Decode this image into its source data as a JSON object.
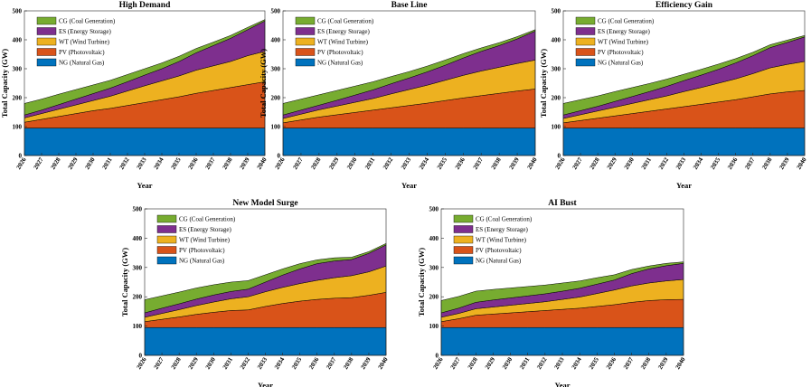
{
  "colors": {
    "NG": "#0072BD",
    "PV": "#D95319",
    "WT": "#EDB120",
    "ES": "#7E2F8E",
    "CG": "#77AC30"
  },
  "chart_data": [
    {
      "type": "area",
      "stacked": true,
      "title": "High Demand",
      "xlabel": "Year",
      "ylabel": "Total Capacity (GW)",
      "ylim": [
        0,
        500
      ],
      "yticks": [
        "0",
        "100",
        "200",
        "300",
        "400",
        "500"
      ],
      "x": [
        "2026",
        "2027",
        "2028",
        "2029",
        "2030",
        "2031",
        "2032",
        "2033",
        "2034",
        "2035",
        "2036",
        "2037",
        "2038",
        "2039",
        "2040"
      ],
      "legend": {
        "position": "top-left",
        "order": [
          "CG",
          "ES",
          "WT",
          "PV",
          "NG"
        ]
      },
      "series": [
        {
          "key": "NG",
          "name": "NG (Natural Gas)",
          "values": [
            95,
            95,
            95,
            95,
            95,
            95,
            95,
            95,
            95,
            95,
            95,
            95,
            95,
            95,
            95
          ]
        },
        {
          "key": "PV",
          "name": "PV (Photovoltaic)",
          "values": [
            20,
            30,
            40,
            50,
            60,
            68,
            78,
            88,
            98,
            108,
            120,
            130,
            140,
            150,
            160
          ]
        },
        {
          "key": "WT",
          "name": "WT (Wind Turbine)",
          "values": [
            15,
            20,
            25,
            30,
            35,
            42,
            50,
            58,
            65,
            72,
            80,
            85,
            90,
            100,
            105
          ]
        },
        {
          "key": "ES",
          "name": "ES (Energy Storage)",
          "values": [
            10,
            12,
            16,
            20,
            24,
            28,
            32,
            37,
            42,
            50,
            60,
            70,
            80,
            90,
            105
          ]
        },
        {
          "key": "CG",
          "name": "CG (Coal Generation)",
          "values": [
            40,
            38,
            36,
            33,
            30,
            27,
            25,
            22,
            20,
            18,
            15,
            12,
            10,
            8,
            5
          ]
        }
      ]
    },
    {
      "type": "area",
      "stacked": true,
      "title": "Base Line",
      "xlabel": "Year",
      "ylabel": "Total Capacity (GW)",
      "ylim": [
        0,
        500
      ],
      "yticks": [
        "0",
        "100",
        "200",
        "300",
        "400",
        "500"
      ],
      "x": [
        "2026",
        "2027",
        "2028",
        "2029",
        "2030",
        "2031",
        "2032",
        "2033",
        "2034",
        "2035",
        "2036",
        "2037",
        "2038",
        "2039",
        "2040"
      ],
      "legend": {
        "position": "top-left",
        "order": [
          "CG",
          "ES",
          "WT",
          "PV",
          "NG"
        ]
      },
      "series": [
        {
          "key": "NG",
          "name": "NG (Natural Gas)",
          "values": [
            95,
            95,
            95,
            95,
            95,
            95,
            95,
            95,
            95,
            95,
            95,
            95,
            95,
            95,
            95
          ]
        },
        {
          "key": "PV",
          "name": "PV (Photovoltaic)",
          "values": [
            18,
            28,
            38,
            46,
            54,
            62,
            70,
            78,
            86,
            95,
            104,
            112,
            120,
            128,
            135
          ]
        },
        {
          "key": "WT",
          "name": "WT (Wind Turbine)",
          "values": [
            15,
            20,
            25,
            30,
            35,
            40,
            48,
            55,
            62,
            70,
            78,
            85,
            90,
            95,
            100
          ]
        },
        {
          "key": "ES",
          "name": "ES (Energy Storage)",
          "values": [
            12,
            14,
            16,
            20,
            25,
            30,
            35,
            40,
            46,
            52,
            60,
            68,
            75,
            85,
            100
          ]
        },
        {
          "key": "CG",
          "name": "CG (Coal Generation)",
          "values": [
            40,
            38,
            36,
            34,
            31,
            28,
            25,
            22,
            20,
            18,
            15,
            12,
            10,
            8,
            5
          ]
        }
      ]
    },
    {
      "type": "area",
      "stacked": true,
      "title": "Efficiency Gain",
      "xlabel": "Year",
      "ylabel": "Total Capacity (GW)",
      "ylim": [
        0,
        500
      ],
      "yticks": [
        "0",
        "100",
        "200",
        "300",
        "400",
        "500"
      ],
      "x": [
        "2026",
        "2027",
        "2028",
        "2029",
        "2030",
        "2031",
        "2032",
        "2033",
        "2034",
        "2035",
        "2036",
        "2037",
        "2038",
        "2039",
        "2040"
      ],
      "legend": {
        "position": "top-left",
        "order": [
          "CG",
          "ES",
          "WT",
          "PV",
          "NG"
        ]
      },
      "series": [
        {
          "key": "NG",
          "name": "NG (Natural Gas)",
          "values": [
            95,
            95,
            95,
            95,
            95,
            95,
            95,
            95,
            95,
            95,
            95,
            95,
            95,
            95,
            95
          ]
        },
        {
          "key": "PV",
          "name": "PV (Photovoltaic)",
          "values": [
            18,
            26,
            34,
            42,
            50,
            58,
            66,
            74,
            82,
            90,
            98,
            108,
            118,
            125,
            130
          ]
        },
        {
          "key": "WT",
          "name": "WT (Wind Turbine)",
          "values": [
            15,
            20,
            25,
            30,
            35,
            40,
            45,
            52,
            58,
            65,
            72,
            80,
            90,
            95,
            100
          ]
        },
        {
          "key": "ES",
          "name": "ES (Energy Storage)",
          "values": [
            12,
            14,
            16,
            20,
            24,
            28,
            33,
            38,
            43,
            48,
            55,
            62,
            70,
            76,
            85
          ]
        },
        {
          "key": "CG",
          "name": "CG (Coal Generation)",
          "values": [
            40,
            38,
            36,
            34,
            31,
            28,
            25,
            22,
            20,
            18,
            15,
            12,
            10,
            8,
            5
          ]
        }
      ]
    },
    {
      "type": "area",
      "stacked": true,
      "title": "New Model Surge",
      "xlabel": "Year",
      "ylabel": "Total Capacity (GW)",
      "ylim": [
        0,
        500
      ],
      "yticks": [
        "0",
        "100",
        "200",
        "300",
        "400",
        "500"
      ],
      "x": [
        "2026",
        "2027",
        "2028",
        "2029",
        "2030",
        "2031",
        "2032",
        "2033",
        "2034",
        "2035",
        "2036",
        "2037",
        "2038",
        "2039",
        "2040"
      ],
      "legend": {
        "position": "top-left",
        "order": [
          "CG",
          "ES",
          "WT",
          "PV",
          "NG"
        ]
      },
      "series": [
        {
          "key": "NG",
          "name": "NG (Natural Gas)",
          "values": [
            95,
            95,
            95,
            95,
            95,
            95,
            95,
            95,
            95,
            95,
            95,
            95,
            95,
            95,
            95
          ]
        },
        {
          "key": "PV",
          "name": "PV (Photovoltaic)",
          "values": [
            20,
            28,
            36,
            45,
            52,
            58,
            60,
            72,
            82,
            90,
            96,
            100,
            102,
            110,
            120
          ]
        },
        {
          "key": "WT",
          "name": "WT (Wind Turbine)",
          "values": [
            15,
            20,
            25,
            30,
            35,
            40,
            45,
            50,
            55,
            60,
            65,
            70,
            75,
            80,
            90
          ]
        },
        {
          "key": "ES",
          "name": "ES (Energy Storage)",
          "values": [
            15,
            18,
            20,
            22,
            24,
            25,
            26,
            33,
            42,
            50,
            57,
            57,
            55,
            63,
            72
          ]
        },
        {
          "key": "CG",
          "name": "CG (Coal Generation)",
          "values": [
            45,
            42,
            40,
            38,
            35,
            32,
            29,
            25,
            21,
            18,
            13,
            11,
            8,
            6,
            5
          ]
        }
      ]
    },
    {
      "type": "area",
      "stacked": true,
      "title": "AI Bust",
      "xlabel": "Year",
      "ylabel": "Total Capacity (GW)",
      "ylim": [
        0,
        500
      ],
      "yticks": [
        "0",
        "100",
        "200",
        "300",
        "400",
        "500"
      ],
      "x": [
        "2026",
        "2027",
        "2028",
        "2029",
        "2030",
        "2031",
        "2032",
        "2033",
        "2034",
        "2035",
        "2036",
        "2037",
        "2038",
        "2039",
        "2040"
      ],
      "legend": {
        "position": "top-left",
        "order": [
          "CG",
          "ES",
          "WT",
          "PV",
          "NG"
        ]
      },
      "series": [
        {
          "key": "NG",
          "name": "NG (Natural Gas)",
          "values": [
            95,
            95,
            95,
            95,
            95,
            95,
            95,
            95,
            95,
            95,
            95,
            95,
            95,
            95,
            95
          ]
        },
        {
          "key": "PV",
          "name": "PV (Photovoltaic)",
          "values": [
            20,
            30,
            42,
            46,
            50,
            54,
            58,
            62,
            66,
            72,
            78,
            86,
            92,
            95,
            96
          ]
        },
        {
          "key": "WT",
          "name": "WT (Wind Turbine)",
          "values": [
            15,
            18,
            22,
            24,
            26,
            28,
            30,
            34,
            38,
            44,
            50,
            56,
            60,
            64,
            68
          ]
        },
        {
          "key": "ES",
          "name": "ES (Energy Storage)",
          "values": [
            15,
            18,
            22,
            24,
            25,
            26,
            27,
            28,
            30,
            32,
            34,
            42,
            48,
            52,
            55
          ]
        },
        {
          "key": "CG",
          "name": "CG (Coal Generation)",
          "values": [
            42,
            40,
            38,
            36,
            34,
            32,
            30,
            28,
            25,
            22,
            18,
            14,
            10,
            8,
            5
          ]
        }
      ]
    }
  ]
}
